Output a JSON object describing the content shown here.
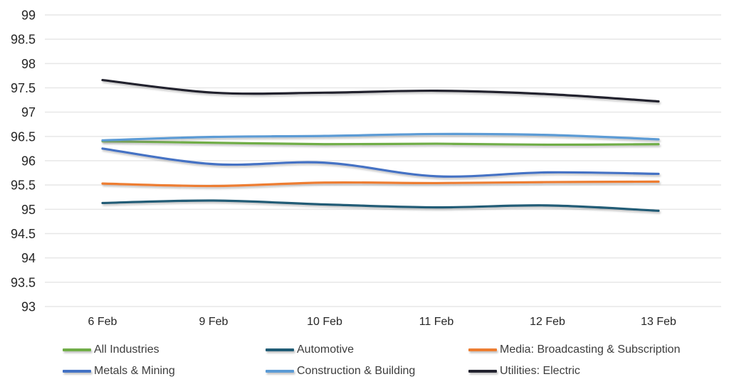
{
  "chart_data": {
    "type": "line",
    "title": "",
    "xlabel": "",
    "ylabel": "",
    "x_labels": [
      "6 Feb",
      "9 Feb",
      "10 Feb",
      "11 Feb",
      "12 Feb",
      "13 Feb"
    ],
    "ylim": [
      93,
      99
    ],
    "y_ticks": [
      99,
      98.5,
      98,
      97.5,
      97,
      96.5,
      96,
      95.5,
      95,
      94.5,
      94,
      93.5,
      93
    ],
    "y_tick_labels": [
      "99",
      "98.5",
      "98",
      "97.5",
      "97",
      "96.5",
      "96",
      "95.5",
      "95",
      "94.5",
      "94",
      "93.5",
      "93"
    ],
    "grid": true,
    "legend_position": "bottom",
    "series": [
      {
        "name": "All Industries",
        "color": "#70AD47",
        "values": [
          96.4,
          96.37,
          96.34,
          96.35,
          96.33,
          96.34
        ]
      },
      {
        "name": "Automotive",
        "color": "#205C76",
        "values": [
          95.13,
          95.18,
          95.1,
          95.04,
          95.08,
          94.97
        ]
      },
      {
        "name": "Media: Broadcasting & Subscription",
        "color": "#ED7D31",
        "values": [
          95.53,
          95.48,
          95.55,
          95.54,
          95.56,
          95.57
        ]
      },
      {
        "name": "Metals & Mining",
        "color": "#4472C4",
        "values": [
          96.25,
          95.93,
          95.96,
          95.68,
          95.76,
          95.73
        ]
      },
      {
        "name": "Construction & Building",
        "color": "#5B9BD5",
        "values": [
          96.42,
          96.49,
          96.51,
          96.55,
          96.53,
          96.44
        ]
      },
      {
        "name": "Utilities: Electric",
        "color": "#23232F",
        "values": [
          97.66,
          97.4,
          97.4,
          97.44,
          97.37,
          97.22
        ]
      }
    ],
    "colors": {
      "gridline": "#E7E7E7",
      "axis_text": "#262626",
      "legend_text": "#3D3D3D",
      "background": "#FFFFFF"
    }
  }
}
